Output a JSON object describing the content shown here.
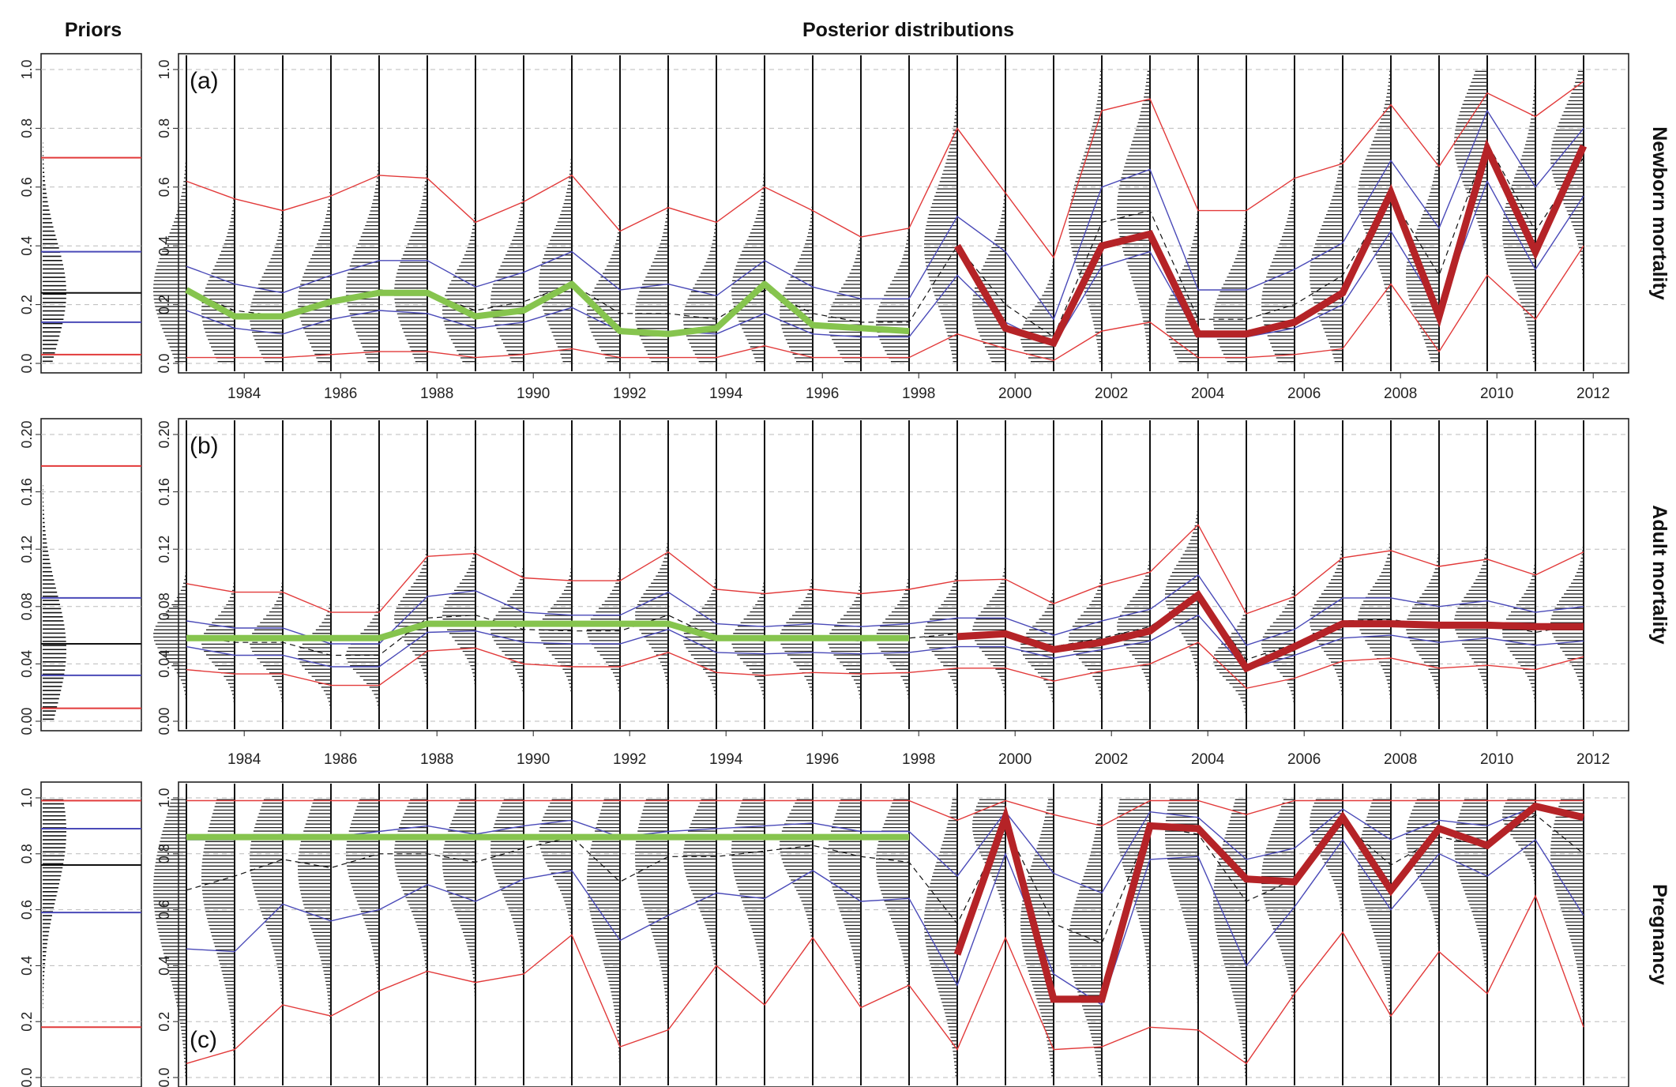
{
  "headers": {
    "priors": "Priors",
    "posterior": "Posterior distributions"
  },
  "colors": {
    "red": "#e23a3a",
    "blue": "#4a4ab8",
    "green": "#86c44e",
    "darkred": "#b52327",
    "black": "#111111"
  },
  "chart_data": {
    "type": "line",
    "years": [
      1983,
      1984,
      1985,
      1986,
      1987,
      1988,
      1989,
      1990,
      1991,
      1992,
      1993,
      1994,
      1995,
      1996,
      1997,
      1998,
      1999,
      2000,
      2001,
      2002,
      2003,
      2004,
      2005,
      2006,
      2007,
      2008,
      2009,
      2010,
      2011,
      2012
    ],
    "xticks": [
      1984,
      1986,
      1988,
      1990,
      1992,
      1994,
      1996,
      1998,
      2000,
      2002,
      2004,
      2006,
      2008,
      2010,
      2012
    ],
    "panels": [
      {
        "label": "(a)",
        "side_label": "Newborn mortality",
        "ylim": [
          0,
          1.0
        ],
        "yticks": [
          "0.0",
          "0.2",
          "0.4",
          "0.6",
          "0.8",
          "1.0"
        ],
        "ytick_values": [
          0,
          0.2,
          0.4,
          0.6,
          0.8,
          1.0
        ],
        "prior": {
          "upper95": 0.7,
          "upper50": 0.38,
          "median": 0.24,
          "lower50": 0.14,
          "lower95": 0.03,
          "peak": 0.24
        },
        "series": [
          {
            "name": "upper 95%",
            "color": "red",
            "values": [
              0.62,
              0.56,
              0.52,
              0.57,
              0.64,
              0.63,
              0.48,
              0.55,
              0.64,
              0.45,
              0.53,
              0.48,
              0.6,
              0.52,
              0.43,
              0.46,
              0.8,
              0.58,
              0.36,
              0.86,
              0.9,
              0.52,
              0.52,
              0.63,
              0.68,
              0.88,
              0.67,
              0.92,
              0.84,
              0.96
            ]
          },
          {
            "name": "upper 50%",
            "color": "blue",
            "values": [
              0.33,
              0.27,
              0.24,
              0.3,
              0.35,
              0.35,
              0.26,
              0.31,
              0.38,
              0.25,
              0.27,
              0.23,
              0.35,
              0.26,
              0.22,
              0.22,
              0.5,
              0.38,
              0.15,
              0.6,
              0.66,
              0.25,
              0.25,
              0.32,
              0.41,
              0.69,
              0.46,
              0.86,
              0.6,
              0.8
            ]
          },
          {
            "name": "median",
            "color": "black",
            "values": [
              0.25,
              0.18,
              0.16,
              0.21,
              0.25,
              0.24,
              0.18,
              0.21,
              0.27,
              0.17,
              0.17,
              0.15,
              0.25,
              0.17,
              0.14,
              0.14,
              0.4,
              0.2,
              0.09,
              0.48,
              0.52,
              0.15,
              0.15,
              0.2,
              0.3,
              0.57,
              0.3,
              0.75,
              0.45,
              0.7
            ]
          },
          {
            "name": "lower 50%",
            "color": "blue",
            "values": [
              0.18,
              0.12,
              0.1,
              0.15,
              0.18,
              0.17,
              0.12,
              0.14,
              0.19,
              0.11,
              0.11,
              0.1,
              0.17,
              0.1,
              0.09,
              0.09,
              0.3,
              0.14,
              0.06,
              0.33,
              0.38,
              0.09,
              0.09,
              0.12,
              0.2,
              0.45,
              0.18,
              0.62,
              0.32,
              0.57
            ]
          },
          {
            "name": "lower 95%",
            "color": "red",
            "values": [
              0.02,
              0.02,
              0.02,
              0.03,
              0.04,
              0.04,
              0.02,
              0.03,
              0.05,
              0.02,
              0.02,
              0.02,
              0.06,
              0.02,
              0.02,
              0.02,
              0.1,
              0.05,
              0.01,
              0.11,
              0.14,
              0.02,
              0.02,
              0.03,
              0.05,
              0.27,
              0.04,
              0.3,
              0.15,
              0.4
            ]
          }
        ],
        "constant_years": [
          1983,
          1998
        ],
        "constant_estimates": [
          0.25,
          0.16,
          0.16,
          0.21,
          0.24,
          0.24,
          0.16,
          0.18,
          0.27,
          0.11,
          0.1,
          0.12,
          0.27,
          0.13,
          0.12,
          0.11
        ],
        "annual_years": [
          1999,
          2012
        ],
        "annual_estimates": [
          0.4,
          0.12,
          0.07,
          0.4,
          0.44,
          0.1,
          0.1,
          0.14,
          0.24,
          0.58,
          0.16,
          0.73,
          0.38,
          0.74
        ]
      },
      {
        "label": "(b)",
        "side_label": "Adult mortality",
        "ylim": [
          0,
          0.2
        ],
        "yticks": [
          "0.00",
          "0.04",
          "0.08",
          "0.12",
          "0.16",
          "0.20"
        ],
        "ytick_values": [
          0,
          0.04,
          0.08,
          0.12,
          0.16,
          0.2
        ],
        "prior": {
          "upper95": 0.178,
          "upper50": 0.086,
          "median": 0.054,
          "lower50": 0.032,
          "lower95": 0.009,
          "peak": 0.05
        },
        "series": [
          {
            "name": "upper 95%",
            "color": "red",
            "values": [
              0.096,
              0.09,
              0.09,
              0.076,
              0.076,
              0.115,
              0.117,
              0.1,
              0.098,
              0.098,
              0.118,
              0.092,
              0.089,
              0.092,
              0.089,
              0.092,
              0.098,
              0.099,
              0.082,
              0.095,
              0.104,
              0.137,
              0.075,
              0.087,
              0.114,
              0.119,
              0.108,
              0.113,
              0.102,
              0.118
            ]
          },
          {
            "name": "upper 50%",
            "color": "blue",
            "values": [
              0.07,
              0.065,
              0.065,
              0.054,
              0.054,
              0.087,
              0.091,
              0.076,
              0.074,
              0.074,
              0.09,
              0.068,
              0.066,
              0.068,
              0.066,
              0.068,
              0.072,
              0.072,
              0.06,
              0.07,
              0.078,
              0.102,
              0.053,
              0.064,
              0.086,
              0.086,
              0.08,
              0.084,
              0.076,
              0.08
            ]
          },
          {
            "name": "median",
            "color": "black",
            "values": [
              0.06,
              0.055,
              0.055,
              0.046,
              0.046,
              0.072,
              0.074,
              0.064,
              0.063,
              0.063,
              0.074,
              0.058,
              0.056,
              0.058,
              0.056,
              0.058,
              0.061,
              0.063,
              0.052,
              0.058,
              0.066,
              0.088,
              0.043,
              0.054,
              0.07,
              0.071,
              0.066,
              0.069,
              0.062,
              0.068
            ]
          },
          {
            "name": "lower 50%",
            "color": "blue",
            "values": [
              0.052,
              0.046,
              0.046,
              0.038,
              0.038,
              0.062,
              0.063,
              0.055,
              0.054,
              0.054,
              0.064,
              0.048,
              0.047,
              0.048,
              0.047,
              0.048,
              0.052,
              0.052,
              0.044,
              0.05,
              0.056,
              0.074,
              0.036,
              0.046,
              0.058,
              0.06,
              0.055,
              0.058,
              0.053,
              0.056
            ]
          },
          {
            "name": "lower 95%",
            "color": "red",
            "values": [
              0.036,
              0.033,
              0.033,
              0.025,
              0.025,
              0.049,
              0.051,
              0.04,
              0.038,
              0.038,
              0.048,
              0.034,
              0.032,
              0.034,
              0.033,
              0.034,
              0.037,
              0.037,
              0.028,
              0.035,
              0.04,
              0.055,
              0.023,
              0.03,
              0.042,
              0.044,
              0.037,
              0.039,
              0.036,
              0.045
            ]
          }
        ],
        "constant_years": [
          1983,
          1998
        ],
        "constant_estimates": [
          0.058,
          0.058,
          0.058,
          0.058,
          0.058,
          0.068,
          0.068,
          0.068,
          0.068,
          0.068,
          0.068,
          0.058,
          0.058,
          0.058,
          0.058,
          0.058
        ],
        "annual_years": [
          1999,
          2012
        ],
        "annual_estimates": [
          0.059,
          0.061,
          0.05,
          0.055,
          0.063,
          0.088,
          0.037,
          0.052,
          0.068,
          0.068,
          0.067,
          0.067,
          0.066,
          0.066
        ]
      },
      {
        "label": "(c)",
        "side_label": "Pregnancy",
        "ylim": [
          0,
          1.0
        ],
        "yticks": [
          "0.0",
          "0.2",
          "0.4",
          "0.6",
          "0.8",
          "1.0"
        ],
        "ytick_values": [
          0,
          0.2,
          0.4,
          0.6,
          0.8,
          1.0
        ],
        "prior": {
          "upper95": 0.99,
          "upper50": 0.89,
          "median": 0.76,
          "lower50": 0.59,
          "lower95": 0.18,
          "peak": 0.88
        },
        "series": [
          {
            "name": "upper 95%",
            "color": "red",
            "values": [
              0.99,
              0.99,
              0.99,
              0.99,
              0.99,
              0.99,
              0.99,
              0.99,
              0.99,
              0.99,
              0.99,
              0.99,
              0.99,
              0.99,
              0.99,
              0.99,
              0.92,
              0.99,
              0.94,
              0.9,
              0.99,
              0.99,
              0.94,
              0.99,
              0.99,
              0.99,
              0.99,
              0.99,
              0.99,
              0.99
            ]
          },
          {
            "name": "upper 50%",
            "color": "blue",
            "values": [
              0.85,
              0.85,
              0.87,
              0.86,
              0.88,
              0.9,
              0.87,
              0.9,
              0.92,
              0.86,
              0.88,
              0.89,
              0.9,
              0.91,
              0.88,
              0.88,
              0.72,
              0.95,
              0.73,
              0.66,
              0.95,
              0.93,
              0.78,
              0.82,
              0.96,
              0.85,
              0.92,
              0.9,
              0.97,
              0.92
            ]
          },
          {
            "name": "median",
            "color": "black",
            "values": [
              0.67,
              0.72,
              0.78,
              0.75,
              0.8,
              0.8,
              0.77,
              0.82,
              0.86,
              0.7,
              0.79,
              0.79,
              0.81,
              0.83,
              0.79,
              0.77,
              0.55,
              0.9,
              0.55,
              0.48,
              0.9,
              0.87,
              0.63,
              0.71,
              0.91,
              0.76,
              0.86,
              0.83,
              0.94,
              0.8
            ]
          },
          {
            "name": "lower 50%",
            "color": "blue",
            "values": [
              0.46,
              0.45,
              0.62,
              0.56,
              0.6,
              0.69,
              0.63,
              0.71,
              0.74,
              0.49,
              0.58,
              0.66,
              0.64,
              0.74,
              0.63,
              0.64,
              0.33,
              0.8,
              0.37,
              0.26,
              0.78,
              0.79,
              0.4,
              0.61,
              0.85,
              0.6,
              0.8,
              0.72,
              0.85,
              0.58
            ]
          },
          {
            "name": "lower 95%",
            "color": "red",
            "values": [
              0.05,
              0.1,
              0.26,
              0.22,
              0.31,
              0.38,
              0.34,
              0.37,
              0.51,
              0.11,
              0.17,
              0.4,
              0.26,
              0.5,
              0.25,
              0.33,
              0.1,
              0.5,
              0.1,
              0.11,
              0.18,
              0.17,
              0.05,
              0.3,
              0.52,
              0.22,
              0.45,
              0.3,
              0.65,
              0.18
            ]
          }
        ],
        "constant_years": [
          1983,
          1998
        ],
        "constant_estimates": [
          0.86,
          0.86,
          0.86,
          0.86,
          0.86,
          0.86,
          0.86,
          0.86,
          0.86,
          0.86,
          0.86,
          0.86,
          0.86,
          0.86,
          0.86,
          0.86
        ],
        "annual_years": [
          1999,
          2012
        ],
        "annual_estimates": [
          0.44,
          0.93,
          0.28,
          0.28,
          0.9,
          0.89,
          0.71,
          0.7,
          0.93,
          0.67,
          0.89,
          0.83,
          0.97,
          0.93
        ]
      }
    ]
  }
}
